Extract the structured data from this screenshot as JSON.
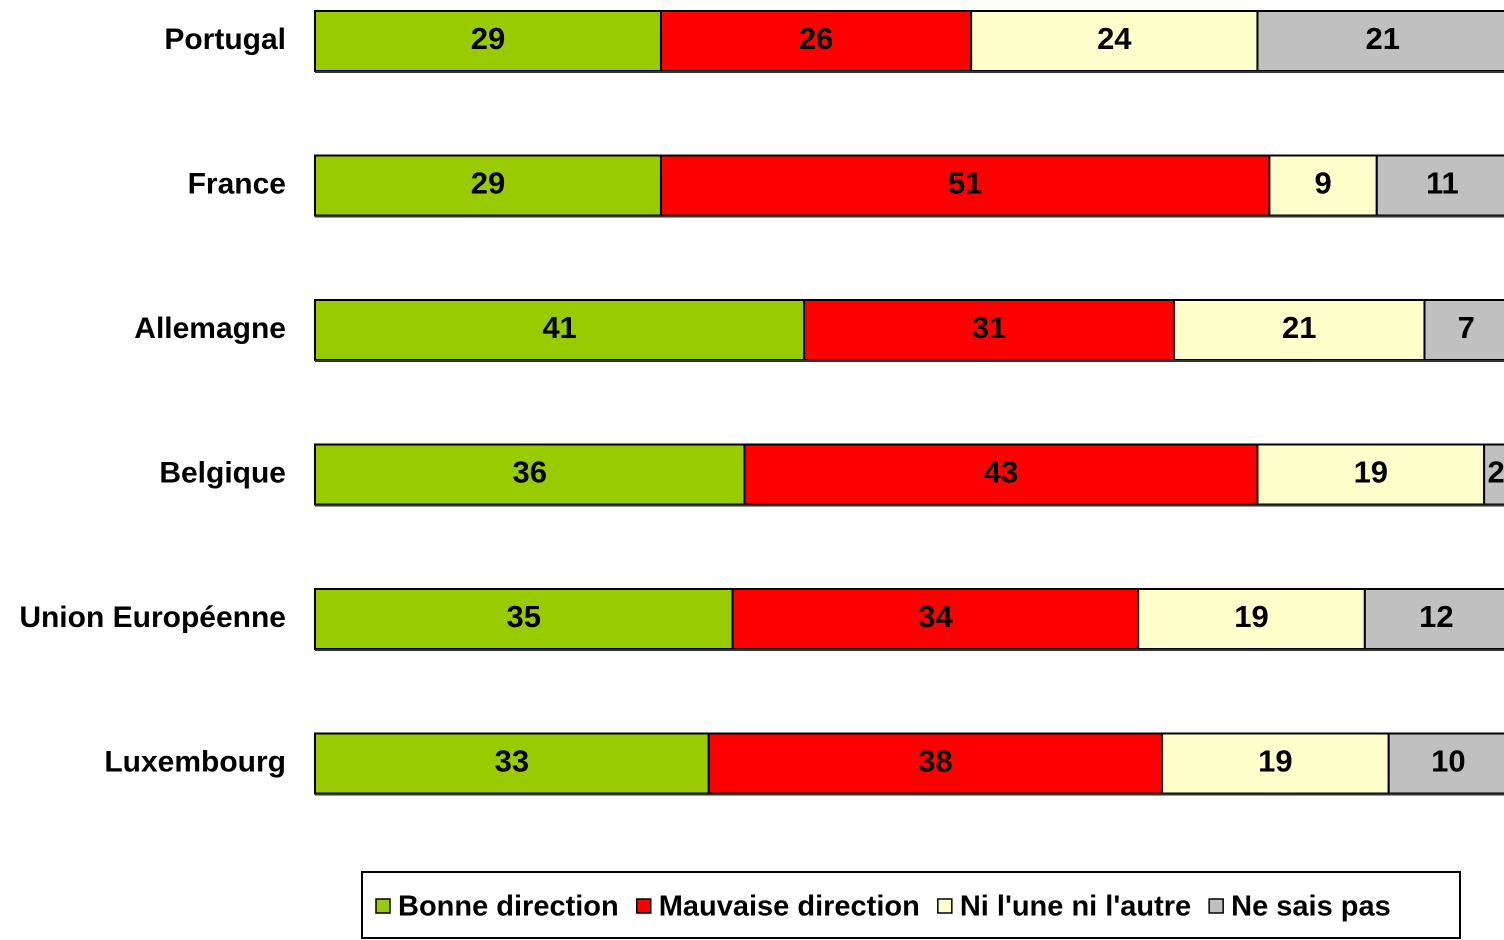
{
  "chart_data": {
    "type": "stacked-bar-horizontal",
    "categories": [
      "Portugal",
      "France",
      "Allemagne",
      "Belgique",
      "Union Européenne",
      "Luxembourg"
    ],
    "series": [
      {
        "name": "Bonne direction",
        "color": "#99cc00",
        "values": [
          29,
          29,
          41,
          36,
          35,
          33
        ]
      },
      {
        "name": "Mauvaise direction",
        "color": "#ff0000",
        "values": [
          26,
          51,
          31,
          43,
          34,
          38
        ]
      },
      {
        "name": "Ni l'une ni l'autre",
        "color": "#ffffcc",
        "values": [
          24,
          9,
          21,
          19,
          19,
          19
        ]
      },
      {
        "name": "Ne sais pas",
        "color": "#c0c0c0",
        "values": [
          21,
          11,
          7,
          2,
          12,
          10
        ]
      }
    ],
    "xlim": [
      0,
      100
    ],
    "legend": "bottom"
  }
}
